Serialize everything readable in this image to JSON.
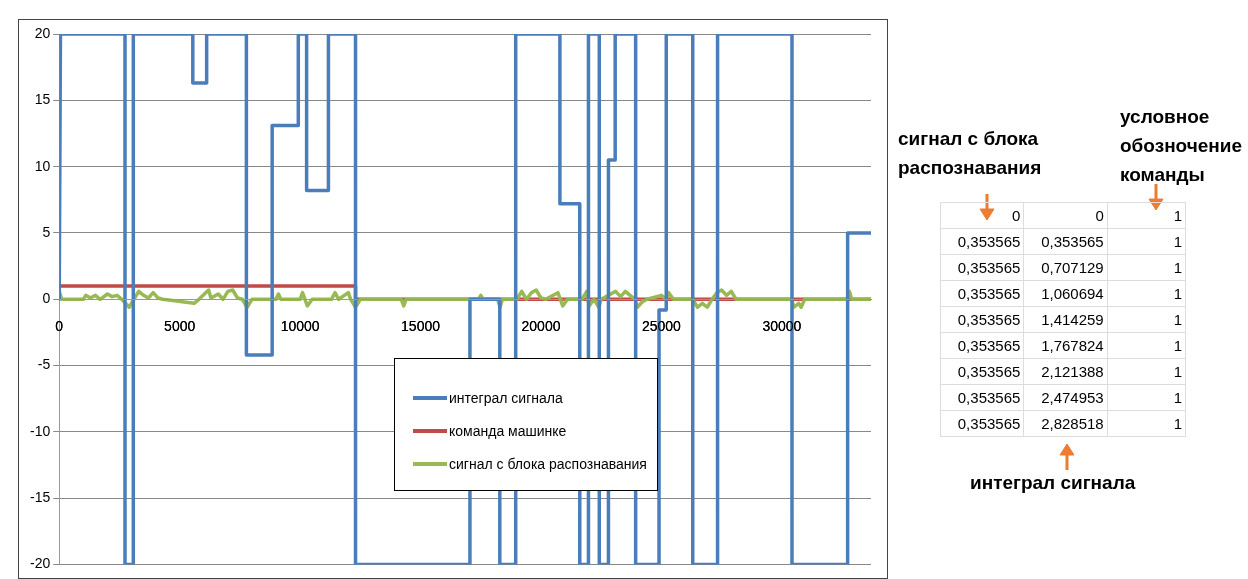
{
  "chart_data": [
    {
      "type": "line",
      "xlim": [
        0,
        33700
      ],
      "xticks": [
        0,
        5000,
        10000,
        15000,
        20000,
        25000,
        30000
      ],
      "ylim": [
        -20,
        20
      ],
      "yticks": [
        -20,
        -15,
        -10,
        -5,
        0,
        5,
        10,
        15,
        20
      ],
      "grid": "y",
      "legend": "bottom",
      "marker": "none",
      "line_style": "solid",
      "series": [
        {
          "name": "интеграл сигнала",
          "color": "#4a7ebb",
          "x": [
            0,
            50,
            2730,
            2730,
            3075,
            3075,
            5545,
            5545,
            6120,
            6120,
            7770,
            7770,
            8840,
            8840,
            9925,
            9925,
            10270,
            10270,
            11175,
            11175,
            12300,
            12300,
            17050,
            17050,
            18290,
            18290,
            18950,
            18950,
            20785,
            20785,
            21610,
            21610,
            21970,
            21970,
            22420,
            22420,
            22800,
            22800,
            23080,
            23080,
            23930,
            23930,
            24900,
            24900,
            25200,
            25200,
            26300,
            26300,
            27330,
            27330,
            30420,
            30420,
            32730,
            32730,
            33700
          ],
          "values": [
            0,
            20,
            20,
            -20,
            -20,
            20,
            20,
            16.3,
            16.3,
            20,
            20,
            -4.2,
            -4.2,
            13.1,
            13.1,
            20,
            20,
            8.2,
            8.2,
            20,
            20,
            -20,
            -20,
            0,
            0,
            -20,
            -20,
            20,
            20,
            7.2,
            7.2,
            -20,
            -20,
            20,
            20,
            -20,
            -20,
            10.5,
            10.5,
            20,
            20,
            -20,
            -20,
            -0.8,
            -0.8,
            20,
            20,
            -20,
            -20,
            20,
            20,
            -20,
            -20,
            5,
            5
          ]
        },
        {
          "name": "команда машинке",
          "color": "#be4b48",
          "x": [
            0,
            12300,
            12300,
            33700
          ],
          "values": [
            1,
            1,
            0,
            0
          ]
        },
        {
          "name": "сигнал с блока распознавания",
          "color": "#98b954",
          "x": [
            0,
            100,
            1000,
            1100,
            1300,
            1500,
            1700,
            2000,
            2200,
            2400,
            2600,
            2900,
            3100,
            3300,
            3500,
            3700,
            3900,
            4100,
            4300,
            5600,
            5800,
            6200,
            6300,
            6600,
            6800,
            7000,
            7200,
            7400,
            7600,
            7800,
            8000,
            9000,
            9100,
            9200,
            10000,
            10100,
            10300,
            10500,
            11300,
            11450,
            11600,
            12000,
            12100,
            12300,
            12500,
            14200,
            14300,
            14400,
            17400,
            17500,
            17600,
            18200,
            18300,
            18400,
            19000,
            19200,
            19400,
            19600,
            19800,
            20000,
            20200,
            20700,
            20900,
            21100,
            21700,
            21900,
            22000,
            22200,
            22400,
            22500,
            22900,
            23100,
            23300,
            23500,
            23700,
            23900,
            24000,
            24200,
            24400,
            25000,
            25200,
            25300,
            25500,
            26300,
            26500,
            26700,
            26900,
            27100,
            27300,
            27500,
            27700,
            27900,
            28100,
            30400,
            30500,
            30700,
            30800,
            30950,
            32700,
            32800,
            32900,
            33700
          ],
          "values": [
            0.6,
            0,
            0,
            0.3,
            0.1,
            0.3,
            0,
            0.4,
            0.2,
            0.3,
            0,
            -0.6,
            0,
            0.6,
            0.3,
            0.1,
            0.5,
            0.1,
            0,
            -0.3,
            0,
            0.7,
            0.1,
            0.4,
            0,
            0.6,
            0.7,
            0.1,
            0,
            -0.6,
            0,
            0,
            0.4,
            0,
            0,
            0.5,
            -0.5,
            0,
            0,
            0.5,
            0,
            0.5,
            0,
            -0.6,
            0,
            0,
            -0.5,
            0,
            0,
            0.3,
            0,
            0,
            -0.6,
            0,
            0,
            0.6,
            0,
            0.5,
            0.7,
            0.1,
            0,
            0.5,
            -0.5,
            0,
            0,
            0.6,
            -0.5,
            0,
            -0.6,
            0,
            0.4,
            0.6,
            0.2,
            0.6,
            0.3,
            0,
            -0.6,
            -0.2,
            0,
            0.3,
            0,
            0.5,
            0,
            0,
            -0.6,
            -0.3,
            -0.6,
            0,
            0.5,
            0.7,
            0.3,
            0.6,
            0,
            0,
            -0.6,
            -0.3,
            -0.6,
            0,
            0,
            0.6,
            0,
            0
          ]
        }
      ]
    },
    {
      "type": "other",
      "annotations": [
        "сигнал с блока распознавания",
        "условное обозночение команды",
        "интеграл сигнала"
      ],
      "cell_labels": [
        [
          "0",
          "0",
          "1"
        ],
        [
          "0,353565",
          "0,353565",
          "1"
        ],
        [
          "0,353565",
          "0,707129",
          "1"
        ],
        [
          "0,353565",
          "1,060694",
          "1"
        ],
        [
          "0,353565",
          "1,414259",
          "1"
        ],
        [
          "0,353565",
          "1,767824",
          "1"
        ],
        [
          "0,353565",
          "2,121388",
          "1"
        ],
        [
          "0,353565",
          "2,474953",
          "1"
        ],
        [
          "0,353565",
          "2,828518",
          "1"
        ]
      ]
    }
  ]
}
